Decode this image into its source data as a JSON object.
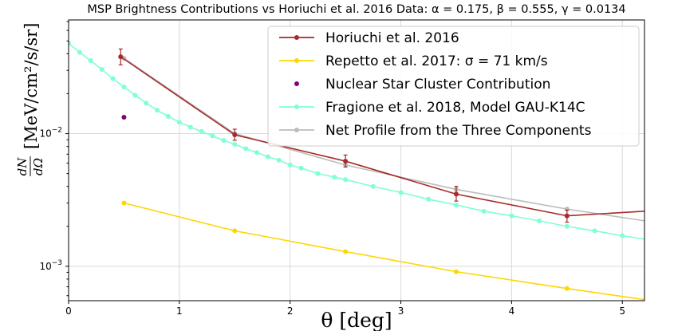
{
  "chart_data": {
    "type": "line",
    "title": "MSP Brightness Contributions vs Horiuchi et al. 2016 Data: α = 0.175, β = 0.555, γ = 0.0134",
    "xlabel": "θ [deg]",
    "ylabel_fraction_numerator": "dN",
    "ylabel_fraction_denominator": "dΩ",
    "ylabel_units": "[MeV/cm²/s/sr]",
    "xlim": [
      0,
      5.2
    ],
    "ylim": [
      0.00055,
      0.072
    ],
    "yscale": "log",
    "grid": true,
    "legend_position": "top-right",
    "x_ticks": [
      0,
      1,
      2,
      3,
      4,
      5
    ],
    "x_tick_labels": [
      "0",
      "1",
      "2",
      "3",
      "4",
      "5"
    ],
    "y_ticks": [
      0.01,
      0.001
    ],
    "y_tick_labels": [
      {
        "base": "10",
        "exp": "−2"
      },
      {
        "base": "10",
        "exp": "−3"
      }
    ],
    "series": [
      {
        "name": "Horiuchi et al. 2016",
        "color": "#a52a2a",
        "marker": "circle",
        "x": [
          0.47,
          1.5,
          2.5,
          3.5,
          4.5,
          5.2
        ],
        "y": [
          0.038,
          0.0098,
          0.0062,
          0.0035,
          0.0024,
          0.0026
        ],
        "yerr_low": [
          0.033,
          0.0089,
          0.0056,
          0.0031,
          0.00215
        ],
        "yerr_high": [
          0.0435,
          0.0108,
          0.0069,
          0.004,
          0.00265
        ]
      },
      {
        "name": "Repetto et al. 2017: σ = 71 km/s",
        "color": "#ffd700",
        "marker": "circle",
        "x": [
          0.5,
          1.5,
          2.5,
          3.5,
          4.5,
          5.2
        ],
        "y": [
          0.003,
          0.00185,
          0.00129,
          0.00091,
          0.00068,
          0.00056
        ]
      },
      {
        "name": "Nuclear Star Cluster Contribution",
        "color": "#800080",
        "marker": "circle",
        "x": [
          0.5
        ],
        "y": [
          0.0133
        ]
      },
      {
        "name": "Fragione et al. 2018, Model GAU-K14C",
        "color": "#7fffd4",
        "marker": "circle",
        "x": [
          0.0,
          0.1,
          0.2,
          0.3,
          0.4,
          0.5,
          0.6,
          0.7,
          0.8,
          0.9,
          1.0,
          1.1,
          1.2,
          1.3,
          1.4,
          1.5,
          1.6,
          1.7,
          1.8,
          1.9,
          2.0,
          2.1,
          2.25,
          2.4,
          2.5,
          2.75,
          3.0,
          3.25,
          3.5,
          3.75,
          4.0,
          4.25,
          4.5,
          4.75,
          5.0,
          5.2
        ],
        "y": [
          0.048,
          0.041,
          0.0355,
          0.0305,
          0.026,
          0.0225,
          0.0195,
          0.017,
          0.015,
          0.0135,
          0.0122,
          0.0112,
          0.0104,
          0.0096,
          0.0089,
          0.0083,
          0.0077,
          0.0072,
          0.0067,
          0.0063,
          0.0058,
          0.0055,
          0.005,
          0.0047,
          0.0045,
          0.004,
          0.0036,
          0.0032,
          0.0029,
          0.0026,
          0.0024,
          0.0022,
          0.002,
          0.00185,
          0.0017,
          0.0016
        ]
      },
      {
        "name": "Net Profile from the Three Components",
        "color": "#bbbbbb",
        "marker": "circle",
        "x": [
          0.5,
          1.5,
          2.5,
          3.5,
          4.5,
          5.2
        ],
        "y": [
          0.037,
          0.01,
          0.0058,
          0.0038,
          0.0027,
          0.0022
        ]
      }
    ]
  }
}
